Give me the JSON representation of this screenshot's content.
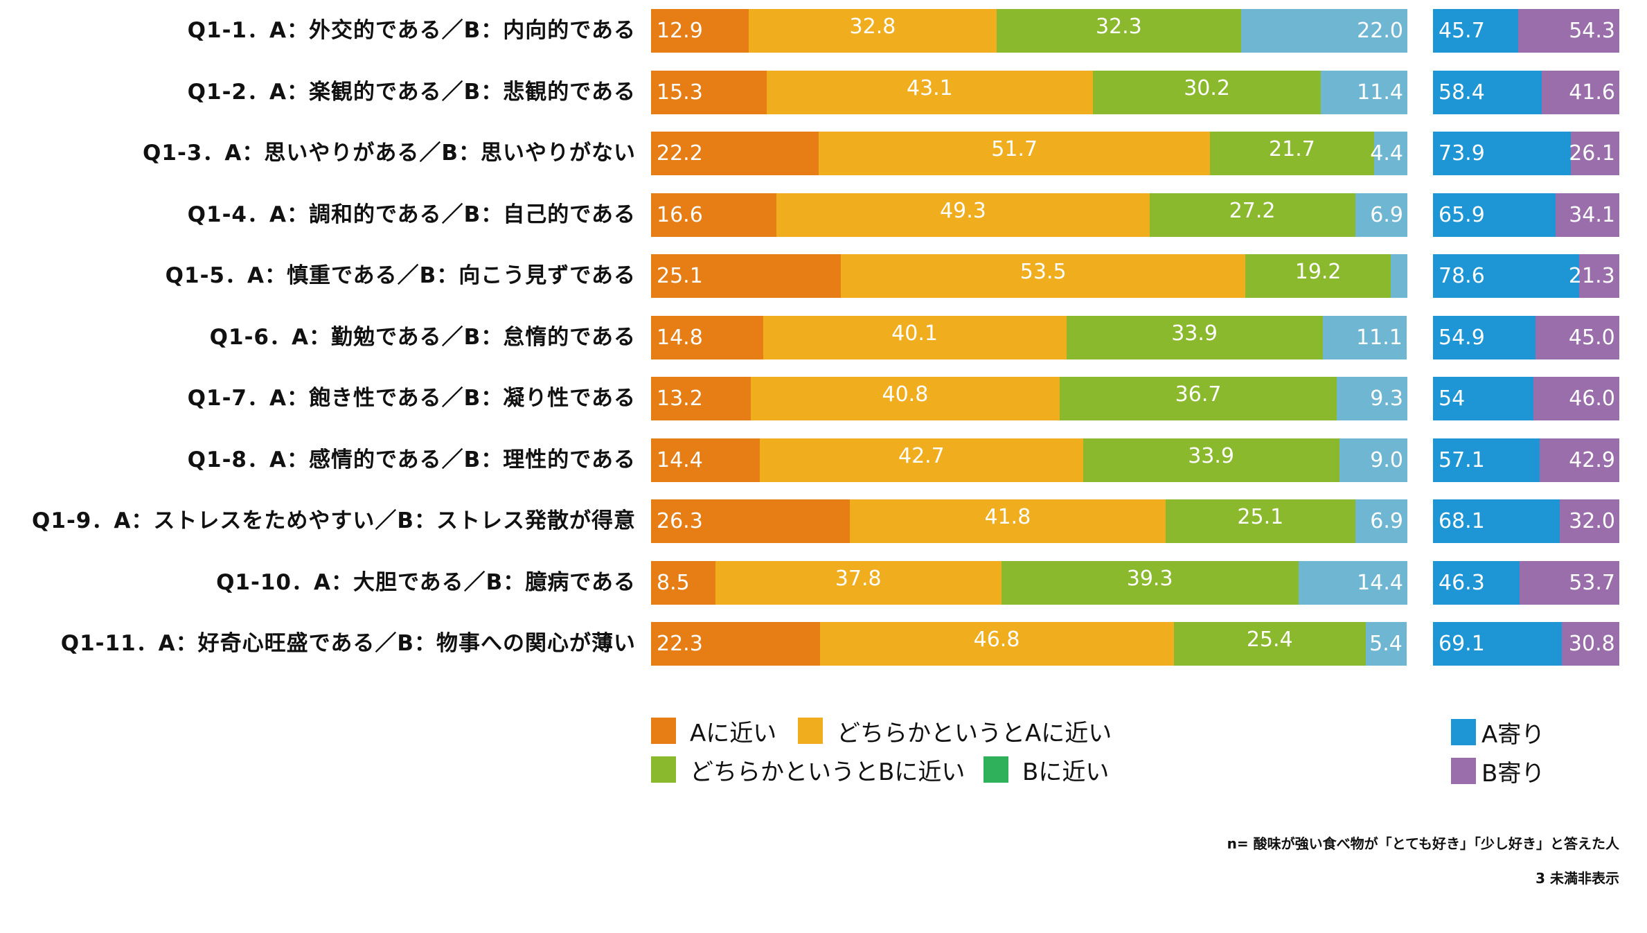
{
  "chart_data": {
    "type": "bar",
    "orientation": "horizontal-stacked",
    "categories": [
      "Q1-1．A：外交的である／B：内向的である",
      "Q1-2．A：楽観的である／B：悲観的である",
      "Q1-3．A：思いやりがある／B：思いやりがない",
      "Q1-4．A：調和的である／B：自己的である",
      "Q1-5．A：慎重である／B：向こう見ずである",
      "Q1-6．A：勤勉である／B：怠惰的である",
      "Q1-7．A：飽き性である／B：凝り性である",
      "Q1-8．A：感情的である／B：理性的である",
      "Q1-9．A：ストレスをためやすい／B：ストレス発散が得意",
      "Q1-10．A：大胆である／B：臆病である",
      "Q1-11．A：好奇心旺盛である／B：物事への関心が薄い"
    ],
    "series": [
      {
        "name": "Aに近い",
        "color": "#E67E15",
        "values": [
          12.9,
          15.3,
          22.2,
          16.6,
          25.1,
          14.8,
          13.2,
          14.4,
          26.3,
          8.5,
          22.3
        ]
      },
      {
        "name": "どちらかというとAに近い",
        "color": "#F0AE1F",
        "values": [
          32.8,
          43.1,
          51.7,
          49.3,
          53.5,
          40.1,
          40.8,
          42.7,
          41.8,
          37.8,
          46.8
        ]
      },
      {
        "name": "どちらかというとBに近い",
        "color": "#8AB92D",
        "values": [
          32.3,
          30.2,
          21.7,
          27.2,
          19.2,
          33.9,
          36.7,
          33.9,
          25.1,
          39.3,
          25.4
        ]
      },
      {
        "name": "Bに近い",
        "color": "#6FB6D3",
        "legend_color": "#2FB05A",
        "values": [
          22.0,
          11.4,
          4.4,
          6.9,
          2.2,
          11.1,
          9.3,
          9.0,
          6.9,
          14.4,
          5.4
        ]
      }
    ],
    "summary_series": [
      {
        "name": "A寄り",
        "color": "#1E96D6",
        "values": [
          45.7,
          58.4,
          73.9,
          65.9,
          78.6,
          54.9,
          54,
          57.1,
          68.1,
          46.3,
          69.1
        ]
      },
      {
        "name": "B寄り",
        "color": "#9A6EAB",
        "values": [
          54.3,
          41.6,
          26.1,
          34.1,
          21.3,
          45.0,
          46.0,
          42.9,
          32.0,
          53.7,
          30.8
        ]
      }
    ],
    "hidden_threshold": 3,
    "xlim": [
      0,
      100
    ],
    "legend_position": "bottom"
  },
  "labels": {
    "seg": [
      [
        "12.9",
        "32.8",
        "32.3",
        "22.0"
      ],
      [
        "15.3",
        "43.1",
        "30.2",
        "11.4"
      ],
      [
        "22.2",
        "51.7",
        "21.7",
        "4.4"
      ],
      [
        "16.6",
        "49.3",
        "27.2",
        "6.9"
      ],
      [
        "25.1",
        "53.5",
        "19.2",
        ""
      ],
      [
        "14.8",
        "40.1",
        "33.9",
        "11.1"
      ],
      [
        "13.2",
        "40.8",
        "36.7",
        "9.3"
      ],
      [
        "14.4",
        "42.7",
        "33.9",
        "9.0"
      ],
      [
        "26.3",
        "41.8",
        "25.1",
        "6.9"
      ],
      [
        "8.5",
        "37.8",
        "39.3",
        "14.4"
      ],
      [
        "22.3",
        "46.8",
        "25.4",
        "5.4"
      ]
    ],
    "sum": [
      [
        "45.7",
        "54.3"
      ],
      [
        "58.4",
        "41.6"
      ],
      [
        "73.9",
        "26.1"
      ],
      [
        "65.9",
        "34.1"
      ],
      [
        "78.6",
        "21.3"
      ],
      [
        "54.9",
        "45.0"
      ],
      [
        "54",
        "46.0"
      ],
      [
        "57.1",
        "42.9"
      ],
      [
        "68.1",
        "32.0"
      ],
      [
        "46.3",
        "53.7"
      ],
      [
        "69.1",
        "30.8"
      ]
    ]
  },
  "notes": {
    "n": "n= 酸味が強い食べ物が「とても好き」「少し好き」と答えた人",
    "threshold": "3 未満非表示"
  }
}
